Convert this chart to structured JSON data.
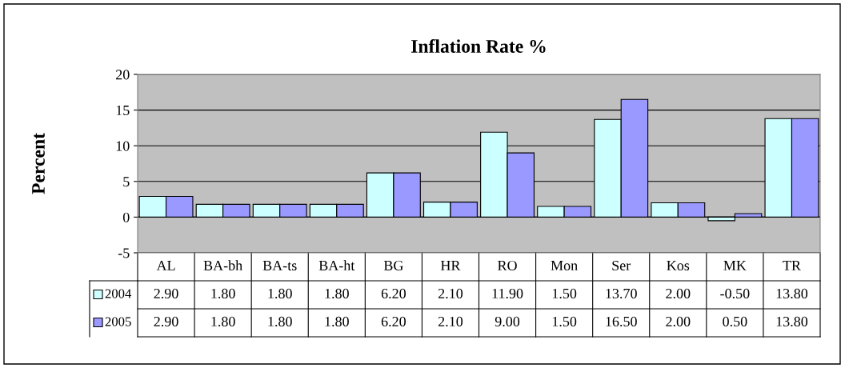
{
  "chart_data": {
    "type": "bar",
    "title": "Inflation Rate %",
    "ylabel": "Percent",
    "categories": [
      "AL",
      "BA-bh",
      "BA-ts",
      "BA-ht",
      "BG",
      "HR",
      "RO",
      "Mon",
      "Ser",
      "Kos",
      "MK",
      "TR"
    ],
    "series": [
      {
        "name": "2004",
        "color": "#ccffff",
        "values": [
          2.9,
          1.8,
          1.8,
          1.8,
          6.2,
          2.1,
          11.9,
          1.5,
          13.7,
          2.0,
          -0.5,
          13.8
        ],
        "value_labels": [
          "2.90",
          "1.80",
          "1.80",
          "1.80",
          "6.20",
          "2.10",
          "11.90",
          "1.50",
          "13.70",
          "2.00",
          "-0.50",
          "13.80"
        ]
      },
      {
        "name": "2005",
        "color": "#9999ff",
        "values": [
          2.9,
          1.8,
          1.8,
          1.8,
          6.2,
          2.1,
          9.0,
          1.5,
          16.5,
          2.0,
          0.5,
          13.8
        ],
        "value_labels": [
          "2.90",
          "1.80",
          "1.80",
          "1.80",
          "6.20",
          "2.10",
          "9.00",
          "1.50",
          "16.50",
          "2.00",
          "0.50",
          "13.80"
        ]
      }
    ],
    "ylim": [
      -5,
      20
    ],
    "yticks": [
      -5,
      0,
      5,
      10,
      15,
      20
    ],
    "grid": "y",
    "legend": "bottom"
  }
}
